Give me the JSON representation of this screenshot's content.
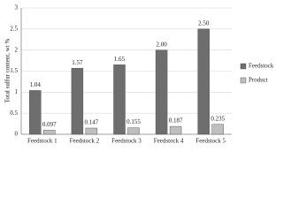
{
  "chart_data": {
    "type": "bar",
    "y_label": "Total sulfur content, wt %",
    "categories": [
      "Feedstock 1",
      "Feedstock 2",
      "Feedstock 3",
      "Feedstock 4",
      "Feedstock 5"
    ],
    "series": [
      {
        "name": "Feedstock",
        "color": "#6e6e6e",
        "values": [
          1.04,
          1.57,
          1.65,
          2.0,
          2.5
        ],
        "value_labels": [
          "1.04",
          "1.57",
          "1.65",
          "2.00",
          "2.50"
        ]
      },
      {
        "name": "Product",
        "color": "#bfbfbf",
        "values": [
          0.097,
          0.147,
          0.155,
          0.187,
          0.235
        ]
      }
    ],
    "ylim": [
      0,
      3
    ],
    "yticks": [
      0,
      0.5,
      1,
      1.5,
      2,
      2.5,
      3
    ],
    "grid": true,
    "legend": "right"
  }
}
